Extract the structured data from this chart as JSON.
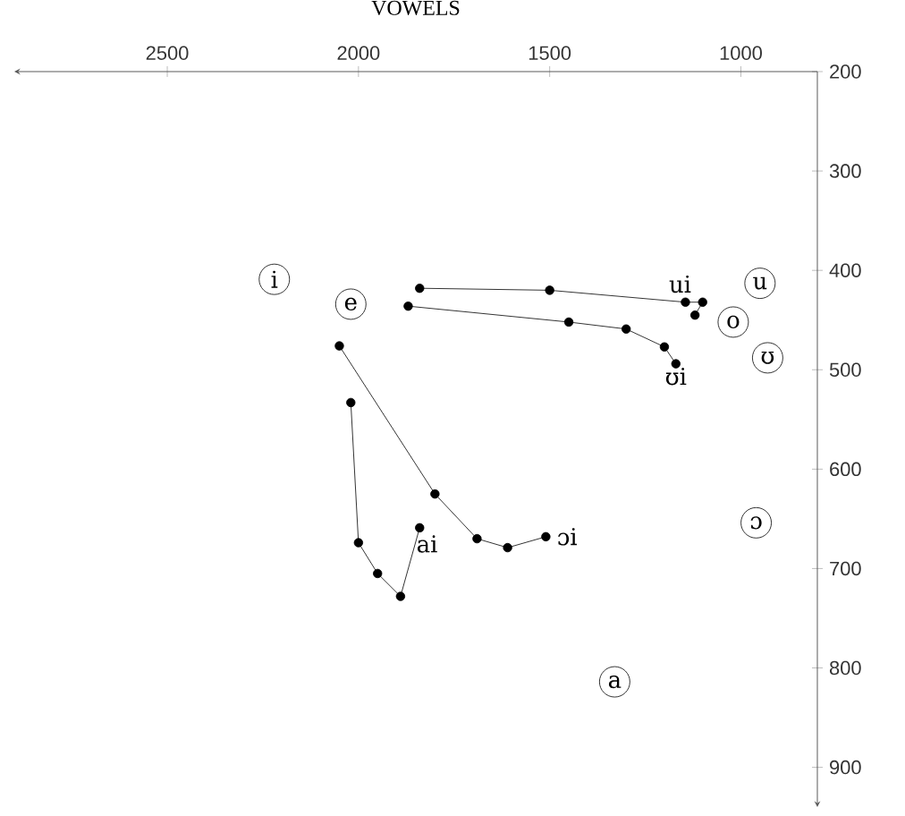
{
  "chart_data": {
    "type": "line",
    "title": "VOWELS",
    "series": [
      {
        "name": "ui",
        "color": "#000000",
        "x": [
          1840,
          1500,
          1145,
          1100,
          1120
        ],
        "values": [
          418,
          420,
          432,
          432,
          445
        ]
      },
      {
        "name": "ʊi",
        "color": "#000000",
        "x": [
          1870,
          1450,
          1300,
          1200,
          1170
        ],
        "values": [
          436,
          452,
          459,
          477,
          494
        ]
      },
      {
        "name": "ɔi",
        "color": "#000000",
        "x": [
          2050,
          1800,
          1690,
          1610,
          1510
        ],
        "values": [
          476,
          625,
          670,
          679,
          668
        ]
      },
      {
        "name": "ai",
        "color": "#000000",
        "x": [
          2020,
          2000,
          1950,
          1890,
          1840
        ],
        "values": [
          533,
          674,
          705,
          728,
          659
        ]
      },
      {
        "type": "scatter",
        "color": "#000000",
        "x": [
          2220,
          2020,
          950,
          1020,
          930,
          960,
          1330
        ],
        "values": [
          409,
          434,
          413,
          452,
          488,
          654,
          814
        ],
        "value_labels": [
          "i",
          "e",
          "u",
          "o",
          "ʊ",
          "ɔ",
          "a"
        ]
      }
    ],
    "xlim": [
      2900,
      800
    ],
    "ylim": [
      940,
      200
    ],
    "xticks": [
      2500,
      2000,
      1500,
      1000
    ],
    "yticks": [
      200,
      300,
      400,
      500,
      600,
      700,
      800,
      900
    ],
    "marker": "circle",
    "line_style": "solid",
    "grid": false
  }
}
